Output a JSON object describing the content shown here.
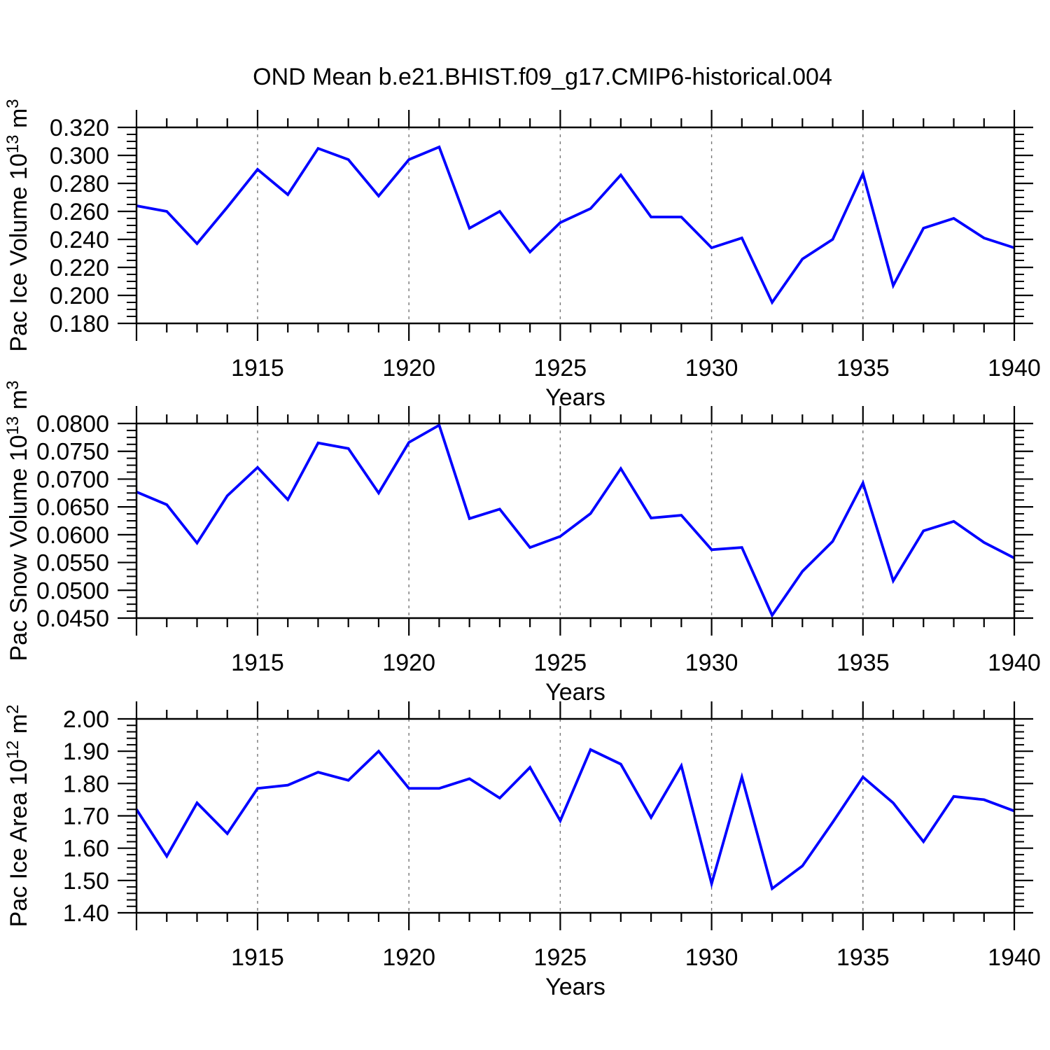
{
  "title": "OND Mean b.e21.BHIST.f09_g17.CMIP6-historical.004",
  "colors": {
    "line": "#0000ff",
    "axis": "#000000",
    "grid": "#777777",
    "text": "#000000",
    "background": "#ffffff"
  },
  "x_axis": {
    "title": "Years",
    "start": 1911,
    "end": 1940,
    "major_ticks": [
      1915,
      1920,
      1925,
      1930,
      1935,
      1940
    ],
    "tick_labels": [
      "1915",
      "1920",
      "1925",
      "1930",
      "1935",
      "1940"
    ],
    "gridline_years": [
      1915,
      1920,
      1925,
      1930,
      1935
    ]
  },
  "years": [
    1911,
    1912,
    1913,
    1914,
    1915,
    1916,
    1917,
    1918,
    1919,
    1920,
    1921,
    1922,
    1923,
    1924,
    1925,
    1926,
    1927,
    1928,
    1929,
    1930,
    1931,
    1932,
    1933,
    1934,
    1935,
    1936,
    1937,
    1938,
    1939,
    1940
  ],
  "chart_data": [
    {
      "type": "line",
      "name": "pac-ice-volume",
      "ylabel_text": "Pac Ice Volume 10^13 m^3",
      "ylabel_parts": [
        {
          "t": "Pac Ice Volume 10",
          "sup": false
        },
        {
          "t": "13",
          "sup": true
        },
        {
          "t": " m",
          "sup": false
        },
        {
          "t": "3",
          "sup": true
        }
      ],
      "ylim": [
        0.18,
        0.32
      ],
      "ytick_major": [
        0.32,
        0.3,
        0.28,
        0.26,
        0.24,
        0.22,
        0.2,
        0.18
      ],
      "ytick_labels": [
        "0.320",
        "0.300",
        "0.280",
        "0.260",
        "0.240",
        "0.220",
        "0.200",
        "0.180"
      ],
      "y_minor_per_major": 4,
      "xlabel": "Years",
      "values": [
        0.264,
        0.26,
        0.237,
        0.263,
        0.29,
        0.272,
        0.305,
        0.297,
        0.271,
        0.297,
        0.306,
        0.248,
        0.26,
        0.231,
        0.252,
        0.262,
        0.286,
        0.256,
        0.256,
        0.234,
        0.241,
        0.195,
        0.226,
        0.24,
        0.287,
        0.207,
        0.248,
        0.255,
        0.241,
        0.234
      ]
    },
    {
      "type": "line",
      "name": "pac-snow-volume",
      "ylabel_text": "Pac Snow Volume 10^13 m^3",
      "ylabel_parts": [
        {
          "t": "Pac Snow Volume 10",
          "sup": false
        },
        {
          "t": "13",
          "sup": true
        },
        {
          "t": " m",
          "sup": false
        },
        {
          "t": "3",
          "sup": true
        }
      ],
      "ylim": [
        0.045,
        0.08
      ],
      "ytick_major": [
        0.08,
        0.075,
        0.07,
        0.065,
        0.06,
        0.055,
        0.05,
        0.045
      ],
      "ytick_labels": [
        "0.0800",
        "0.0750",
        "0.0700",
        "0.0650",
        "0.0600",
        "0.0550",
        "0.0500",
        "0.0450"
      ],
      "y_minor_per_major": 4,
      "xlabel": "Years",
      "values": [
        0.0677,
        0.0654,
        0.0585,
        0.067,
        0.0721,
        0.0663,
        0.0765,
        0.0755,
        0.0675,
        0.0766,
        0.0797,
        0.0629,
        0.0646,
        0.0577,
        0.0597,
        0.0638,
        0.0719,
        0.063,
        0.0635,
        0.0573,
        0.0577,
        0.0455,
        0.0534,
        0.0588,
        0.0693,
        0.0517,
        0.0607,
        0.0624,
        0.0586,
        0.0558
      ]
    },
    {
      "type": "line",
      "name": "pac-ice-area",
      "ylabel_text": "Pac Ice Area 10^12 m^2",
      "ylabel_parts": [
        {
          "t": "Pac Ice Area 10",
          "sup": false
        },
        {
          "t": "12",
          "sup": true
        },
        {
          "t": " m",
          "sup": false
        },
        {
          "t": "2",
          "sup": true
        }
      ],
      "ylim": [
        1.4,
        2.0
      ],
      "ytick_major": [
        2.0,
        1.9,
        1.8,
        1.7,
        1.6,
        1.5,
        1.4
      ],
      "ytick_labels": [
        "2.00",
        "1.90",
        "1.80",
        "1.70",
        "1.60",
        "1.50",
        "1.40"
      ],
      "y_minor_per_major": 5,
      "xlabel": "Years",
      "values": [
        1.72,
        1.575,
        1.74,
        1.645,
        1.785,
        1.795,
        1.835,
        1.81,
        1.9,
        1.785,
        1.785,
        1.815,
        1.755,
        1.85,
        1.685,
        1.905,
        1.86,
        1.695,
        1.855,
        1.49,
        1.82,
        1.475,
        1.545,
        1.68,
        1.82,
        1.74,
        1.62,
        1.76,
        1.75,
        1.715
      ]
    }
  ]
}
